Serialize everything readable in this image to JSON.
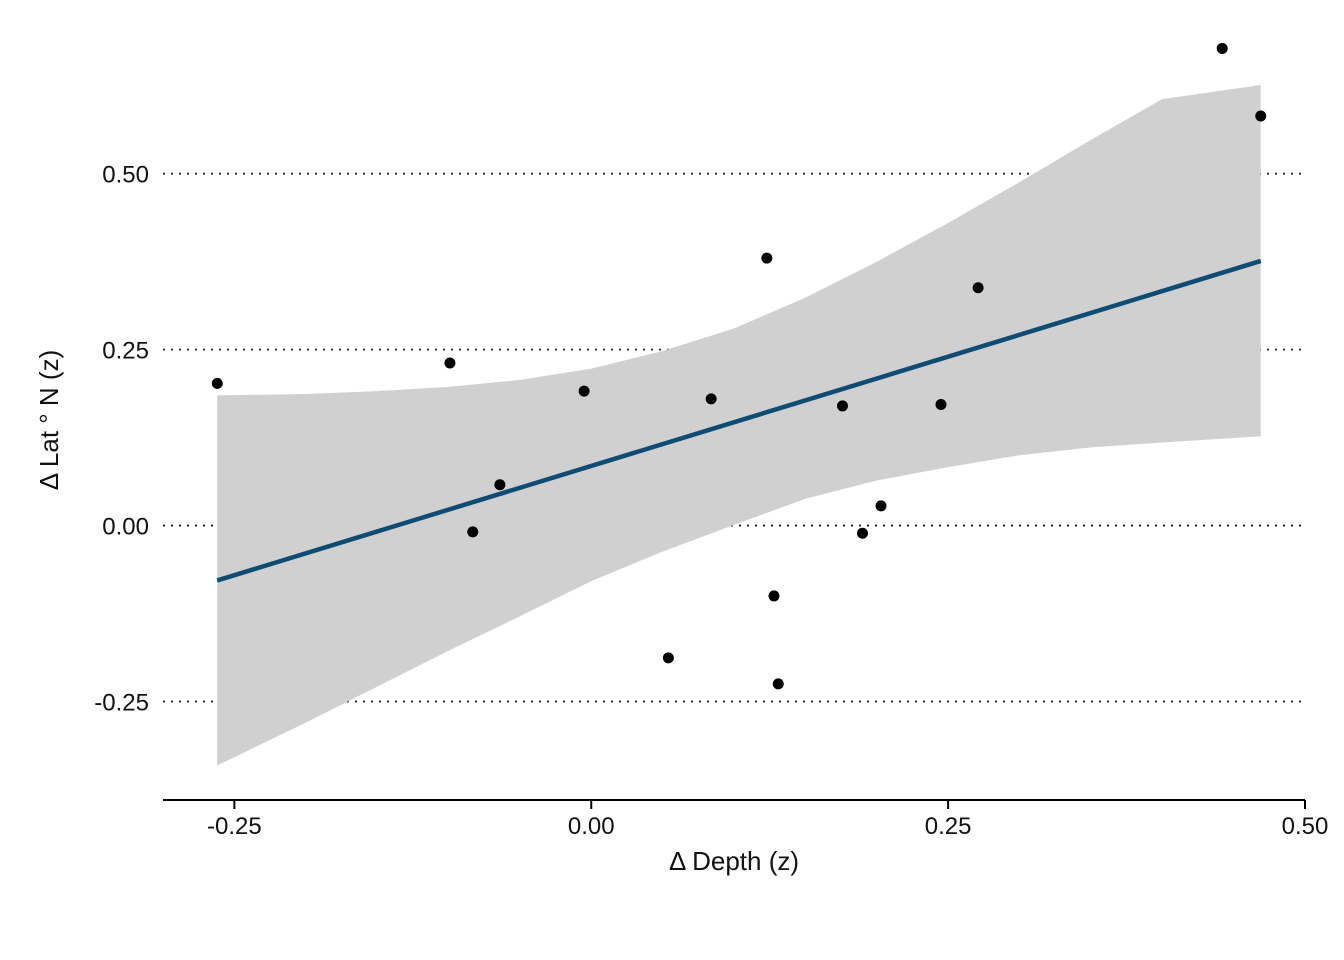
{
  "chart_data": {
    "type": "scatter",
    "xlabel": "Δ Depth (z)",
    "ylabel": "Δ Lat ° N  (z)",
    "xlim": [
      -0.3,
      0.5
    ],
    "ylim": [
      -0.39,
      0.69
    ],
    "x_ticks": [
      {
        "value": -0.25,
        "label": "-0.25"
      },
      {
        "value": 0.0,
        "label": "0.00"
      },
      {
        "value": 0.25,
        "label": "0.25"
      },
      {
        "value": 0.5,
        "label": "0.50"
      }
    ],
    "y_ticks": [
      {
        "value": -0.25,
        "label": "-0.25"
      },
      {
        "value": 0.0,
        "label": "0.00"
      },
      {
        "value": 0.25,
        "label": "0.25"
      },
      {
        "value": 0.5,
        "label": "0.50"
      }
    ],
    "grid": "horizontal-dotted",
    "points": [
      {
        "x": -0.262,
        "y": 0.202
      },
      {
        "x": -0.099,
        "y": 0.231
      },
      {
        "x": -0.083,
        "y": -0.009
      },
      {
        "x": -0.064,
        "y": 0.058
      },
      {
        "x": -0.005,
        "y": 0.191
      },
      {
        "x": 0.054,
        "y": -0.188
      },
      {
        "x": 0.084,
        "y": 0.18
      },
      {
        "x": 0.123,
        "y": 0.38
      },
      {
        "x": 0.128,
        "y": -0.1
      },
      {
        "x": 0.131,
        "y": -0.225
      },
      {
        "x": 0.176,
        "y": 0.17
      },
      {
        "x": 0.19,
        "y": -0.011
      },
      {
        "x": 0.203,
        "y": 0.028
      },
      {
        "x": 0.245,
        "y": 0.172
      },
      {
        "x": 0.271,
        "y": 0.338
      },
      {
        "x": 0.442,
        "y": 0.678
      },
      {
        "x": 0.469,
        "y": 0.582
      }
    ],
    "fit_line": {
      "x": [
        -0.262,
        0.469
      ],
      "y": [
        -0.078,
        0.376
      ],
      "color": "#0f4c74"
    },
    "confidence_band": {
      "x": [
        -0.262,
        -0.2,
        -0.15,
        -0.1,
        -0.05,
        0.0,
        0.05,
        0.1,
        0.15,
        0.2,
        0.25,
        0.3,
        0.35,
        0.4,
        0.469
      ],
      "upper": [
        0.185,
        0.187,
        0.191,
        0.197,
        0.207,
        0.223,
        0.248,
        0.28,
        0.324,
        0.375,
        0.43,
        0.488,
        0.548,
        0.606,
        0.626
      ],
      "lower": [
        -0.341,
        -0.28,
        -0.229,
        -0.178,
        -0.129,
        -0.079,
        -0.037,
        0.001,
        0.038,
        0.064,
        0.083,
        0.1,
        0.111,
        0.118,
        0.127
      ],
      "color": "#d0d0d0"
    },
    "point_color": "#000000"
  }
}
